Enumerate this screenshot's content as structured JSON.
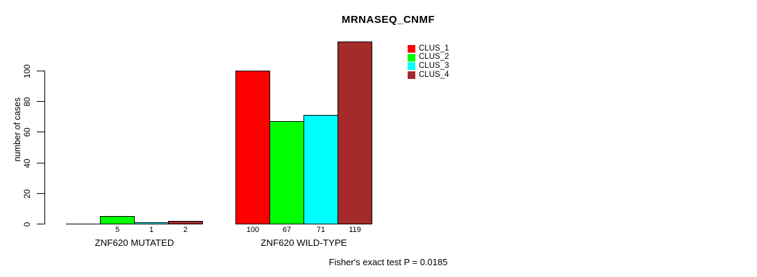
{
  "title": "MRNASEQ_CNMF",
  "footer": "Fisher's exact test P = 0.0185",
  "colors": {
    "background": "#ffffff",
    "axis": "#000000",
    "clus_1": "#ff0000",
    "clus_2": "#00ff00",
    "clus_3": "#00ffff",
    "clus_4": "#a52a2a"
  },
  "legend": {
    "entries": [
      {
        "label": "CLUS_1",
        "color": "#ff0000"
      },
      {
        "label": "CLUS_2",
        "color": "#00ff00"
      },
      {
        "label": "CLUS_3",
        "color": "#00ffff"
      },
      {
        "label": "CLUS_4",
        "color": "#a52a2a"
      }
    ]
  },
  "chart_data": {
    "type": "bar",
    "title": "MRNASEQ_CNMF",
    "xlabel": "",
    "ylabel": "number of cases",
    "ylim": [
      0,
      124
    ],
    "yticks": [
      0,
      20,
      40,
      60,
      80,
      100
    ],
    "grid": false,
    "legend_position": "top-right",
    "categories": [
      "ZNF620 MUTATED",
      "ZNF620 WILD-TYPE"
    ],
    "series": [
      {
        "name": "CLUS_1",
        "color": "#ff0000",
        "values": [
          0,
          100
        ]
      },
      {
        "name": "CLUS_2",
        "color": "#00ff00",
        "values": [
          5,
          67
        ]
      },
      {
        "name": "CLUS_3",
        "color": "#00ffff",
        "values": [
          1,
          71
        ]
      },
      {
        "name": "CLUS_4",
        "color": "#a52a2a",
        "values": [
          2,
          119
        ]
      }
    ],
    "bar_labels": {
      "ZNF620 MUTATED": [
        "",
        "5",
        "1",
        "2"
      ],
      "ZNF620 WILD-TYPE": [
        "100",
        "67",
        "71",
        "119"
      ]
    },
    "annotation": "Fisher's exact test P = 0.0185"
  }
}
